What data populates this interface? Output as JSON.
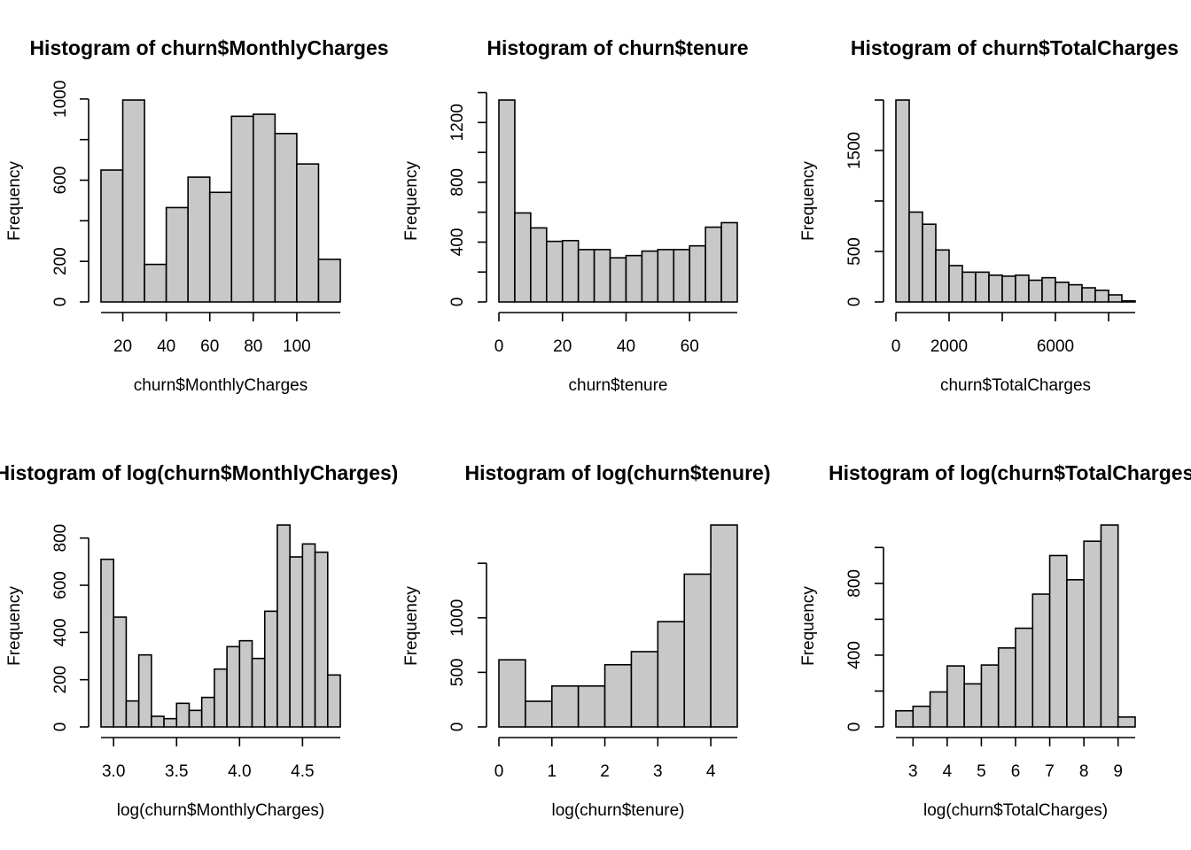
{
  "chart_data": [
    {
      "type": "bar",
      "title": "Histogram of churn$MonthlyCharges",
      "xlabel": "churn$MonthlyCharges",
      "ylabel": "Frequency",
      "bin_edges": [
        10,
        20,
        30,
        40,
        50,
        60,
        70,
        80,
        90,
        100,
        110,
        120
      ],
      "values": [
        650,
        995,
        185,
        465,
        615,
        540,
        915,
        925,
        830,
        680,
        210
      ],
      "xlim": [
        10,
        120
      ],
      "ylim": [
        0,
        1000
      ],
      "x_ticks": [
        20,
        40,
        60,
        80,
        100
      ],
      "y_ticks": [
        0,
        200,
        600,
        1000
      ],
      "y_minor_ticks": [
        400,
        800
      ]
    },
    {
      "type": "bar",
      "title": "Histogram of churn$tenure",
      "xlabel": "churn$tenure",
      "ylabel": "Frequency",
      "bin_edges": [
        0,
        5,
        10,
        15,
        20,
        25,
        30,
        35,
        40,
        45,
        50,
        55,
        60,
        65,
        70,
        75
      ],
      "values": [
        1350,
        595,
        495,
        405,
        410,
        350,
        350,
        295,
        310,
        340,
        350,
        350,
        375,
        500,
        530
      ],
      "xlim": [
        0,
        75
      ],
      "ylim": [
        0,
        1400
      ],
      "x_ticks": [
        0,
        20,
        40,
        60
      ],
      "y_ticks": [
        0,
        400,
        800,
        1200
      ],
      "y_minor_ticks": [
        200,
        600,
        1000,
        1400
      ]
    },
    {
      "type": "bar",
      "title": "Histogram of churn$TotalCharges",
      "xlabel": "churn$TotalCharges",
      "ylabel": "Frequency",
      "bin_edges": [
        0,
        500,
        1000,
        1500,
        2000,
        2500,
        3000,
        3500,
        4000,
        4500,
        5000,
        5500,
        6000,
        6500,
        7000,
        7500,
        8000,
        8500,
        9000
      ],
      "values": [
        2000,
        890,
        770,
        515,
        360,
        295,
        295,
        265,
        255,
        265,
        215,
        240,
        195,
        170,
        140,
        115,
        70,
        10
      ],
      "xlim": [
        0,
        9000
      ],
      "ylim": [
        0,
        2000
      ],
      "x_ticks": [
        0,
        2000,
        6000
      ],
      "x_minor_ticks": [
        4000,
        8000
      ],
      "y_ticks": [
        0,
        500,
        1500
      ],
      "y_minor_ticks": [
        1000,
        2000
      ]
    },
    {
      "type": "bar",
      "title": "Histogram of log(churn$MonthlyCharges)",
      "xlabel": "log(churn$MonthlyCharges)",
      "ylabel": "Frequency",
      "bin_edges": [
        2.9,
        3.0,
        3.1,
        3.2,
        3.3,
        3.4,
        3.5,
        3.6,
        3.7,
        3.8,
        3.9,
        4.0,
        4.1,
        4.2,
        4.3,
        4.4,
        4.5,
        4.6,
        4.7,
        4.8
      ],
      "values": [
        710,
        465,
        110,
        305,
        45,
        35,
        100,
        70,
        125,
        245,
        340,
        365,
        290,
        490,
        855,
        720,
        775,
        740,
        220
      ],
      "xlim": [
        2.9,
        4.8
      ],
      "ylim": [
        0,
        800
      ],
      "x_ticks": [
        3.0,
        3.5,
        4.0,
        4.5
      ],
      "x_tick_labels": [
        "3.0",
        "3.5",
        "4.0",
        "4.5"
      ],
      "y_ticks": [
        0,
        200,
        400,
        600,
        800
      ]
    },
    {
      "type": "bar",
      "title": "Histogram of log(churn$tenure)",
      "xlabel": "log(churn$tenure)",
      "ylabel": "Frequency",
      "bin_edges": [
        0,
        0.5,
        1.0,
        1.5,
        2.0,
        2.5,
        3.0,
        3.5,
        4.0,
        4.5
      ],
      "values": [
        615,
        235,
        375,
        375,
        570,
        690,
        965,
        1400,
        1850
      ],
      "xlim": [
        0,
        4.5
      ],
      "ylim": [
        0,
        1500
      ],
      "x_ticks": [
        0,
        1,
        2,
        3,
        4
      ],
      "y_ticks": [
        0,
        500,
        1000,
        1500
      ],
      "y_tick_labels": [
        "0",
        "500",
        "1000",
        ""
      ]
    },
    {
      "type": "bar",
      "title": "Histogram of log(churn$TotalCharges)",
      "xlabel": "log(churn$TotalCharges)",
      "ylabel": "Frequency",
      "bin_edges": [
        2.5,
        3.0,
        3.5,
        4.0,
        4.5,
        5.0,
        5.5,
        6.0,
        6.5,
        7.0,
        7.5,
        8.0,
        8.5,
        9.0,
        9.5
      ],
      "values": [
        90,
        115,
        195,
        340,
        240,
        345,
        440,
        550,
        740,
        955,
        820,
        1035,
        1125,
        55
      ],
      "xlim": [
        2.5,
        9.5
      ],
      "ylim": [
        0,
        1000
      ],
      "x_ticks": [
        3,
        4,
        5,
        6,
        7,
        8,
        9
      ],
      "y_ticks": [
        0,
        400,
        800
      ],
      "y_minor_ticks": [
        200,
        600,
        1000
      ]
    }
  ]
}
